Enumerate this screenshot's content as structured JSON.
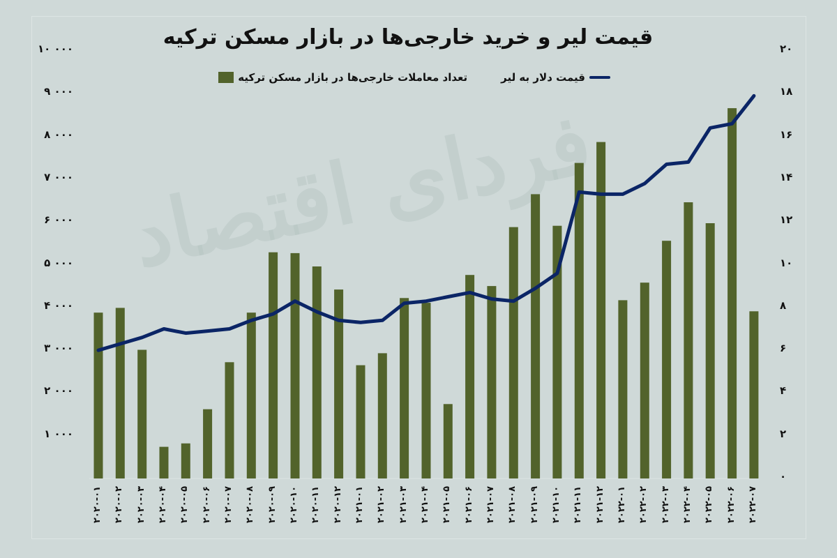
{
  "title": "قیمت لیر و خرید خارجی‌ها در بازار مسکن ترکیه",
  "legend": {
    "line_label": "قیمت دلار به لیر",
    "bar_label": "تعداد معاملات خارجی‌ها در بازار مسکن ترکیه"
  },
  "watermark": "فردای اقتصاد",
  "colors": {
    "background": "#cfd9d8",
    "bar": "#52632b",
    "line": "#0b2566",
    "text": "#111111"
  },
  "left_axis_ticks": [
    "۱۰ ۰۰۰",
    "۹ ۰۰۰",
    "۸ ۰۰۰",
    "۷ ۰۰۰",
    "۶ ۰۰۰",
    "۵ ۰۰۰",
    "۴ ۰۰۰",
    "۳ ۰۰۰",
    "۲ ۰۰۰",
    "۱ ۰۰۰"
  ],
  "right_axis_ticks": [
    "۲۰",
    "۱۸",
    "۱۶",
    "۱۴",
    "۱۲",
    "۱۰",
    "۸",
    "۶",
    "۴",
    "۲",
    "۰"
  ],
  "x_labels": [
    "۲۰۲۰-۰۱",
    "۲۰۲۰-۰۲",
    "۲۰۲۰-۰۳",
    "۲۰۲۰-۰۴",
    "۲۰۲۰-۰۵",
    "۲۰۲۰-۰۶",
    "۲۰۲۰-۰۷",
    "۲۰۲۰-۰۸",
    "۲۰۲۰-۰۹",
    "۲۰۲۰-۱۰",
    "۲۰۲۰-۱۱",
    "۲۰۲۰-۱۲",
    "۲۰۲۱-۰۱",
    "۲۰۲۱-۰۲",
    "۲۰۲۱-۰۳",
    "۲۰۲۱-۰۴",
    "۲۰۲۱-۰۵",
    "۲۰۲۱-۰۶",
    "۲۰۲۱-۰۷",
    "۲۰۲۱-۰۸",
    "۲۰۲۱-۰۹",
    "۲۰۲۱-۱۰",
    "۲۰۲۱-۱۱",
    "۲۰۲۱-۱۲",
    "۲۰۲۲-۰۱",
    "۲۰۲۲-۰۲",
    "۲۰۲۲-۰۳",
    "۲۰۲۲-۰۴",
    "۲۰۲۲-۰۵",
    "۲۰۲۲-۰۶",
    "۲۰۲۲-۰۷"
  ],
  "chart_data": {
    "type": "bar+line",
    "title": "قیمت لیر و خرید خارجی‌ها در بازار مسکن ترکیه",
    "categories": [
      "2020-01",
      "2020-02",
      "2020-03",
      "2020-04",
      "2020-05",
      "2020-06",
      "2020-07",
      "2020-08",
      "2020-09",
      "2020-10",
      "2020-11",
      "2020-12",
      "2021-01",
      "2021-02",
      "2021-03",
      "2021-04",
      "2021-05",
      "2021-06",
      "2021-07",
      "2021-08",
      "2021-09",
      "2021-10",
      "2021-11",
      "2021-12",
      "2022-01",
      "2022-02",
      "2022-03",
      "2022-04",
      "2022-05",
      "2022-06",
      "2022-07"
    ],
    "series": [
      {
        "name": "تعداد معاملات خارجی‌ها در بازار مسکن ترکیه",
        "type": "bar",
        "axis": "left",
        "values": [
          3880,
          3990,
          3010,
          740,
          820,
          1620,
          2720,
          3880,
          5290,
          5270,
          4960,
          4420,
          2650,
          2930,
          4220,
          4110,
          1740,
          4760,
          4500,
          5880,
          6650,
          5910,
          7380,
          7870,
          4170,
          4580,
          5560,
          6460,
          5970,
          8660,
          3910
        ]
      },
      {
        "name": "قیمت دلار به لیر",
        "type": "line",
        "axis": "right",
        "values": [
          5.9,
          6.2,
          6.5,
          6.9,
          6.7,
          6.8,
          6.9,
          7.3,
          7.6,
          8.2,
          7.7,
          7.3,
          7.2,
          7.3,
          8.1,
          8.2,
          8.4,
          8.6,
          8.3,
          8.2,
          8.8,
          9.5,
          13.3,
          13.2,
          13.2,
          13.7,
          14.6,
          14.7,
          16.3,
          16.5,
          17.8
        ]
      }
    ],
    "xlabel": "",
    "ylabel_left": "",
    "ylabel_right": "",
    "ylim_left": [
      0,
      10000
    ],
    "ylim_right": [
      0,
      20
    ],
    "grid": false,
    "legend_position": "top"
  }
}
